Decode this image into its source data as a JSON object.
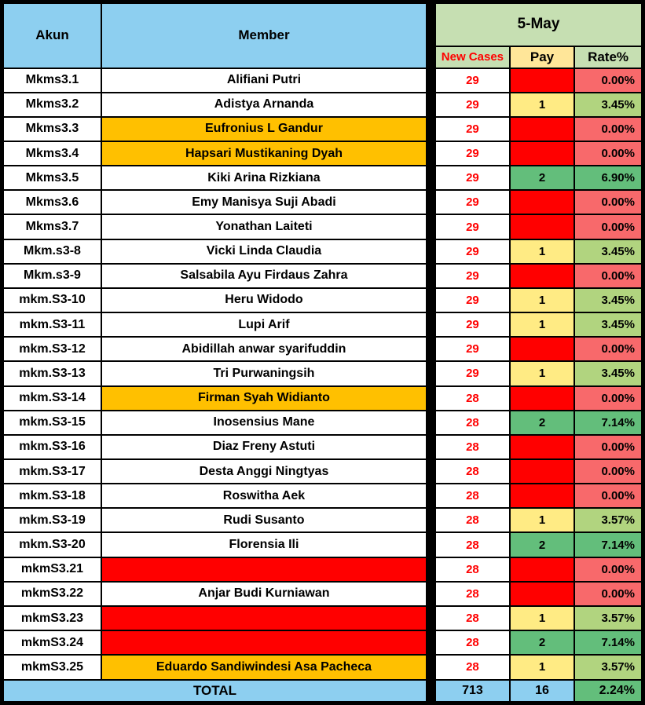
{
  "header": {
    "akun": "Akun",
    "member": "Member",
    "date": "5-May",
    "new_cases": "New Cases",
    "pay": "Pay",
    "rate": "Rate%"
  },
  "rows": [
    {
      "akun": "Mkms3.1",
      "member": "Alifiani Putri",
      "member_bg": "white",
      "new_cases": "29",
      "pay": "",
      "pay_bg": "red",
      "rate": "0.00%",
      "rate_bg": "red"
    },
    {
      "akun": "Mkms3.2",
      "member": "Adistya Arnanda",
      "member_bg": "white",
      "new_cases": "29",
      "pay": "1",
      "pay_bg": "yellow",
      "rate": "3.45%",
      "rate_bg": "mid"
    },
    {
      "akun": "Mkms3.3",
      "member": "Eufronius L Gandur",
      "member_bg": "orange",
      "new_cases": "29",
      "pay": "",
      "pay_bg": "red",
      "rate": "0.00%",
      "rate_bg": "red"
    },
    {
      "akun": "Mkms3.4",
      "member": "Hapsari Mustikaning Dyah",
      "member_bg": "orange",
      "new_cases": "29",
      "pay": "",
      "pay_bg": "red",
      "rate": "0.00%",
      "rate_bg": "red"
    },
    {
      "akun": "Mkms3.5",
      "member": "Kiki Arina Rizkiana",
      "member_bg": "white",
      "new_cases": "29",
      "pay": "2",
      "pay_bg": "green",
      "rate": "6.90%",
      "rate_bg": "green"
    },
    {
      "akun": "Mkms3.6",
      "member": "Emy Manisya Suji Abadi",
      "member_bg": "white",
      "new_cases": "29",
      "pay": "",
      "pay_bg": "red",
      "rate": "0.00%",
      "rate_bg": "red"
    },
    {
      "akun": "Mkms3.7",
      "member": "Yonathan Laiteti",
      "member_bg": "white",
      "new_cases": "29",
      "pay": "",
      "pay_bg": "red",
      "rate": "0.00%",
      "rate_bg": "red"
    },
    {
      "akun": "Mkm.s3-8",
      "member": "Vicki Linda Claudia",
      "member_bg": "white",
      "new_cases": "29",
      "pay": "1",
      "pay_bg": "yellow",
      "rate": "3.45%",
      "rate_bg": "mid"
    },
    {
      "akun": "Mkm.s3-9",
      "member": "Salsabila Ayu Firdaus Zahra",
      "member_bg": "white",
      "new_cases": "29",
      "pay": "",
      "pay_bg": "red",
      "rate": "0.00%",
      "rate_bg": "red"
    },
    {
      "akun": "mkm.S3-10",
      "member": "Heru Widodo",
      "member_bg": "white",
      "new_cases": "29",
      "pay": "1",
      "pay_bg": "yellow",
      "rate": "3.45%",
      "rate_bg": "mid"
    },
    {
      "akun": "mkm.S3-11",
      "member": "Lupi Arif",
      "member_bg": "white",
      "new_cases": "29",
      "pay": "1",
      "pay_bg": "yellow",
      "rate": "3.45%",
      "rate_bg": "mid"
    },
    {
      "akun": "mkm.S3-12",
      "member": "Abidillah anwar syarifuddin",
      "member_bg": "white",
      "new_cases": "29",
      "pay": "",
      "pay_bg": "red",
      "rate": "0.00%",
      "rate_bg": "red"
    },
    {
      "akun": "mkm.S3-13",
      "member": "Tri Purwaningsih",
      "member_bg": "white",
      "new_cases": "29",
      "pay": "1",
      "pay_bg": "yellow",
      "rate": "3.45%",
      "rate_bg": "mid"
    },
    {
      "akun": "mkm.S3-14",
      "member": "Firman Syah Widianto",
      "member_bg": "orange",
      "new_cases": "28",
      "pay": "",
      "pay_bg": "red",
      "rate": "0.00%",
      "rate_bg": "red"
    },
    {
      "akun": "mkm.S3-15",
      "member": "Inosensius Mane",
      "member_bg": "white",
      "new_cases": "28",
      "pay": "2",
      "pay_bg": "green",
      "rate": "7.14%",
      "rate_bg": "green"
    },
    {
      "akun": "mkm.S3-16",
      "member": "Diaz Freny Astuti",
      "member_bg": "white",
      "new_cases": "28",
      "pay": "",
      "pay_bg": "red",
      "rate": "0.00%",
      "rate_bg": "red"
    },
    {
      "akun": "mkm.S3-17",
      "member": "Desta Anggi Ningtyas",
      "member_bg": "white",
      "new_cases": "28",
      "pay": "",
      "pay_bg": "red",
      "rate": "0.00%",
      "rate_bg": "red"
    },
    {
      "akun": "mkm.S3-18",
      "member": "Roswitha Aek",
      "member_bg": "white",
      "new_cases": "28",
      "pay": "",
      "pay_bg": "red",
      "rate": "0.00%",
      "rate_bg": "red"
    },
    {
      "akun": "mkm.S3-19",
      "member": "Rudi Susanto",
      "member_bg": "white",
      "new_cases": "28",
      "pay": "1",
      "pay_bg": "yellow",
      "rate": "3.57%",
      "rate_bg": "mid"
    },
    {
      "akun": "mkm.S3-20",
      "member": "Florensia Ili",
      "member_bg": "white",
      "new_cases": "28",
      "pay": "2",
      "pay_bg": "green",
      "rate": "7.14%",
      "rate_bg": "green"
    },
    {
      "akun": "mkmS3.21",
      "member": "",
      "member_bg": "red",
      "new_cases": "28",
      "pay": "",
      "pay_bg": "red",
      "rate": "0.00%",
      "rate_bg": "red"
    },
    {
      "akun": "mkmS3.22",
      "member": "Anjar Budi Kurniawan",
      "member_bg": "white",
      "new_cases": "28",
      "pay": "",
      "pay_bg": "red",
      "rate": "0.00%",
      "rate_bg": "red"
    },
    {
      "akun": "mkmS3.23",
      "member": "",
      "member_bg": "red",
      "new_cases": "28",
      "pay": "1",
      "pay_bg": "yellow",
      "rate": "3.57%",
      "rate_bg": "mid"
    },
    {
      "akun": "mkmS3.24",
      "member": "",
      "member_bg": "red",
      "new_cases": "28",
      "pay": "2",
      "pay_bg": "green",
      "rate": "7.14%",
      "rate_bg": "green"
    },
    {
      "akun": "mkmS3.25",
      "member": "Eduardo Sandiwindesi Asa Pacheca",
      "member_bg": "orange",
      "new_cases": "28",
      "pay": "1",
      "pay_bg": "yellow",
      "rate": "3.57%",
      "rate_bg": "mid"
    }
  ],
  "total": {
    "label": "TOTAL",
    "new_cases": "713",
    "pay": "16",
    "rate": "2.24%"
  },
  "colors": {
    "header_blue": "#8DCFF0",
    "header_green": "#C6DFB2",
    "header_yellow": "#FFE699",
    "new_cases_text": "#FF0000",
    "highlight_orange": "#FFC000",
    "missing_red": "#FF0000",
    "pay_yellow": "#FFEB84",
    "pay_green": "#63BE7B",
    "rate_red": "#F8696B",
    "rate_mid": "#B1D47F",
    "rate_green": "#63BE7B",
    "border_black": "#000000"
  }
}
